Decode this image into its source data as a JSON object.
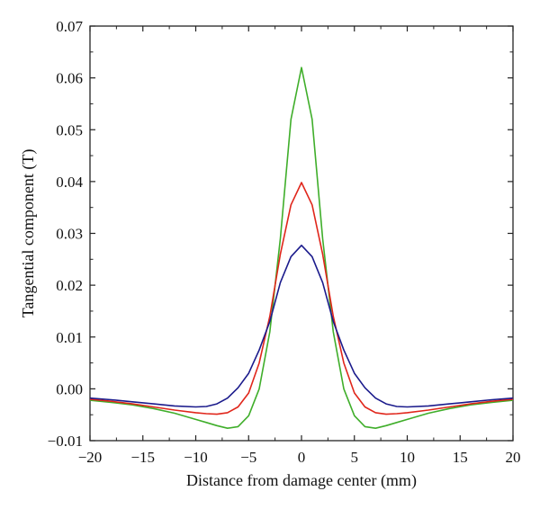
{
  "chart_data": {
    "type": "line",
    "title": "",
    "xlabel": "Distance from damage center (mm)",
    "ylabel": "Tangential component (T)",
    "xlim": [
      -20,
      20
    ],
    "ylim": [
      -0.01,
      0.07
    ],
    "x_ticks": [
      -20,
      -15,
      -10,
      -5,
      0,
      5,
      10,
      15,
      20
    ],
    "x_tick_labels": [
      "−20",
      "−15",
      "−10",
      "−5",
      "0",
      "5",
      "10",
      "15",
      "20"
    ],
    "y_ticks": [
      -0.01,
      0.0,
      0.01,
      0.02,
      0.03,
      0.04,
      0.05,
      0.06,
      0.07
    ],
    "y_tick_labels": [
      "−0.01",
      "0.00",
      "0.01",
      "0.02",
      "0.03",
      "0.04",
      "0.05",
      "0.06",
      "0.07"
    ],
    "grid": false,
    "legend": "none",
    "series": [
      {
        "color": "#3fae2a",
        "x": [
          -20,
          -18,
          -16,
          -14,
          -12,
          -10,
          -9,
          -8,
          -7,
          -6,
          -5,
          -4,
          -3,
          -2,
          -1,
          0,
          1,
          2,
          3,
          4,
          5,
          6,
          7,
          8,
          9,
          10,
          12,
          14,
          16,
          18,
          20
        ],
        "y": [
          -0.0022,
          -0.0026,
          -0.0031,
          -0.0038,
          -0.0047,
          -0.0059,
          -0.0065,
          -0.0071,
          -0.0076,
          -0.0073,
          -0.0052,
          0.0,
          0.011,
          0.029,
          0.052,
          0.062,
          0.052,
          0.029,
          0.011,
          0.0,
          -0.0052,
          -0.0073,
          -0.0076,
          -0.0071,
          -0.0065,
          -0.0059,
          -0.0047,
          -0.0038,
          -0.0031,
          -0.0026,
          -0.0022
        ]
      },
      {
        "color": "#e0261b",
        "x": [
          -20,
          -18,
          -16,
          -14,
          -12,
          -10,
          -9,
          -8,
          -7,
          -6,
          -5,
          -4,
          -3,
          -2,
          -1,
          0,
          1,
          2,
          3,
          4,
          5,
          6,
          7,
          8,
          9,
          10,
          12,
          14,
          16,
          18,
          20
        ],
        "y": [
          -0.002,
          -0.0024,
          -0.0029,
          -0.0035,
          -0.0041,
          -0.0046,
          -0.0048,
          -0.0049,
          -0.0046,
          -0.0035,
          -0.0008,
          0.005,
          0.014,
          0.026,
          0.0355,
          0.0398,
          0.0355,
          0.026,
          0.014,
          0.005,
          -0.0008,
          -0.0035,
          -0.0046,
          -0.0049,
          -0.0048,
          -0.0046,
          -0.0041,
          -0.0035,
          -0.0029,
          -0.0024,
          -0.002
        ]
      },
      {
        "color": "#1b1b8c",
        "x": [
          -20,
          -18,
          -16,
          -14,
          -12,
          -10,
          -9,
          -8,
          -7,
          -6,
          -5,
          -4,
          -3,
          -2,
          -1,
          0,
          1,
          2,
          3,
          4,
          5,
          6,
          7,
          8,
          9,
          10,
          12,
          14,
          16,
          18,
          20
        ],
        "y": [
          -0.0018,
          -0.0021,
          -0.0025,
          -0.0029,
          -0.0033,
          -0.0035,
          -0.0034,
          -0.0029,
          -0.0018,
          0.0002,
          0.003,
          0.0075,
          0.013,
          0.0205,
          0.0255,
          0.0277,
          0.0255,
          0.0205,
          0.013,
          0.0075,
          0.003,
          0.0002,
          -0.0018,
          -0.0029,
          -0.0034,
          -0.0035,
          -0.0033,
          -0.0029,
          -0.0025,
          -0.0021,
          -0.0018
        ]
      }
    ]
  }
}
